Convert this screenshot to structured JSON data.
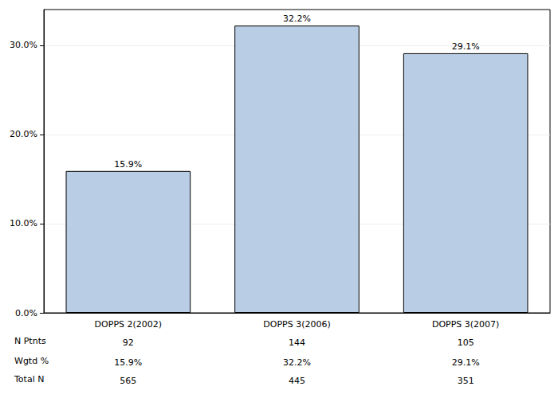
{
  "chart_data": {
    "type": "bar",
    "categories": [
      "DOPPS 2(2002)",
      "DOPPS 3(2006)",
      "DOPPS 3(2007)"
    ],
    "values": [
      15.9,
      32.2,
      29.1
    ],
    "value_labels": [
      "15.9%",
      "32.2%",
      "29.1%"
    ],
    "data_labels": true,
    "color": "#b9cde5",
    "ylim": [
      0,
      34
    ],
    "yticks": [
      {
        "value": 0,
        "label": "0.0%"
      },
      {
        "value": 10,
        "label": "10.0%"
      },
      {
        "value": 20,
        "label": "20.0%"
      },
      {
        "value": 30,
        "label": "30.0%"
      }
    ],
    "grid": true,
    "table": [
      {
        "label": "N Ptnts",
        "values": [
          92,
          144,
          105
        ]
      },
      {
        "label": "Wgtd %",
        "values": [
          15.9,
          32.2,
          29.1
        ],
        "value_labels": [
          "15.9%",
          "32.2%",
          "29.1%"
        ]
      },
      {
        "label": "Total N",
        "values": [
          565,
          445,
          351
        ]
      }
    ]
  }
}
